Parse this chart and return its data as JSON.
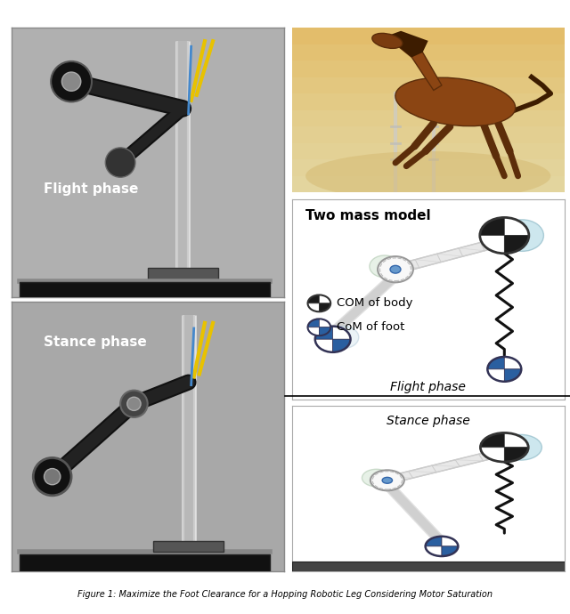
{
  "title": "Figure 1: Maximize the Foot Clearance for a Hopping Robotic Leg Considering Motor Saturation",
  "flight_phase_label": "Flight phase",
  "stance_phase_label": "Stance phase",
  "two_mass_model_label": "Two mass model",
  "com_body_label": "COM of body",
  "com_foot_label": "CoM of foot",
  "flight_phase_diagram_label": "Flight phase",
  "stance_phase_diagram_label": "Stance phase",
  "bg_color": "#ffffff",
  "photo_flight_bg": "#aaaaaa",
  "photo_stance_bg": "#999999",
  "horse_bg_top": "#c8b88a",
  "horse_bg_bot": "#d4c090",
  "body_color_dark": "#1a1a1a",
  "body_color_light": "#ffffff",
  "foot_color_dark": "#2a5fa0",
  "foot_color_light": "#ffffff",
  "leg_color": "#e0e0e0",
  "spring_color": "#111111",
  "ground_color": "#444444",
  "rail_color": "#cccccc",
  "robot_dark": "#111111",
  "robot_mid": "#444444"
}
